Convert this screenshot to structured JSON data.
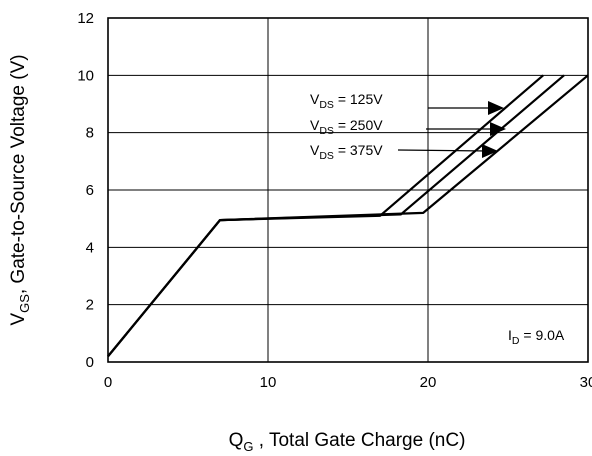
{
  "chart_data": {
    "type": "line",
    "title": "",
    "xlabel": {
      "main": "Q",
      "sub": "G",
      "rest": " , Total Gate Charge (nC)"
    },
    "ylabel": {
      "main": "V",
      "sub": "GS",
      "rest": ", Gate-to-Source Voltage (V)"
    },
    "xlim": [
      0,
      30
    ],
    "ylim": [
      0,
      12
    ],
    "xticks": [
      "0",
      "10",
      "20",
      "30"
    ],
    "yticks": [
      "0",
      "2",
      "4",
      "6",
      "8",
      "10",
      "12"
    ],
    "grid": true,
    "series": [
      {
        "name": "VDS = 125V",
        "x": [
          0,
          7,
          17,
          27.2
        ],
        "y": [
          0.2,
          4.95,
          5.1,
          10
        ]
      },
      {
        "name": "VDS = 250V",
        "x": [
          0,
          7,
          18.3,
          28.5
        ],
        "y": [
          0.2,
          4.95,
          5.15,
          10
        ]
      },
      {
        "name": "VDS = 375V",
        "x": [
          0,
          7,
          19.7,
          30
        ],
        "y": [
          0.2,
          4.95,
          5.2,
          10
        ]
      }
    ],
    "annotations": {
      "vds": [
        {
          "prefix": "V",
          "sub": "DS",
          "rest": " = 125V"
        },
        {
          "prefix": "V",
          "sub": "DS",
          "rest": " = 250V"
        },
        {
          "prefix": "V",
          "sub": "DS",
          "rest": " = 375V"
        }
      ],
      "id": {
        "prefix": "I",
        "sub": "D",
        "rest": " = 9.0A"
      }
    }
  }
}
